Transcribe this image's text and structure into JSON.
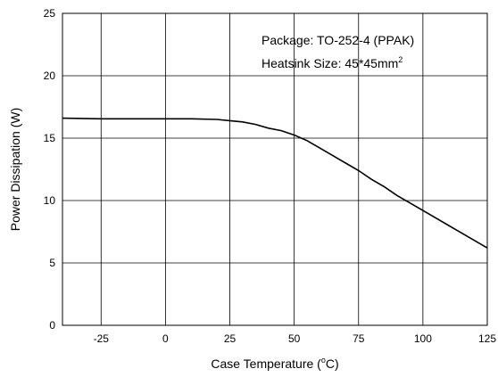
{
  "chart_data": {
    "type": "line",
    "title": "",
    "xlabel": "Case Temperature (",
    "xlabel_sup": "o",
    "xlabel_tail": "C)",
    "ylabel": "Power Dissipation (W)",
    "xlim": [
      -40,
      125
    ],
    "ylim": [
      0,
      25
    ],
    "x_ticks": [
      -25,
      0,
      25,
      50,
      75,
      100,
      125
    ],
    "y_ticks": [
      0,
      5,
      10,
      15,
      20,
      25
    ],
    "grid": true,
    "legend": "none",
    "annotations": {
      "line1": "Package: TO-252-4 (PPAK)",
      "line2": "Heatsink Size: 45*45mm",
      "line2_sup": "2"
    },
    "series": [
      {
        "color": "#000000",
        "x": [
          -40,
          -25,
          0,
          10,
          20,
          25,
          30,
          35,
          40,
          45,
          50,
          55,
          60,
          65,
          70,
          75,
          80,
          85,
          90,
          95,
          100,
          105,
          110,
          115,
          120,
          125
        ],
        "y": [
          16.6,
          16.55,
          16.55,
          16.55,
          16.5,
          16.4,
          16.3,
          16.1,
          15.8,
          15.6,
          15.25,
          14.8,
          14.2,
          13.6,
          13.0,
          12.4,
          11.7,
          11.1,
          10.4,
          9.8,
          9.2,
          8.6,
          8.0,
          7.4,
          6.8,
          6.2
        ]
      }
    ]
  }
}
